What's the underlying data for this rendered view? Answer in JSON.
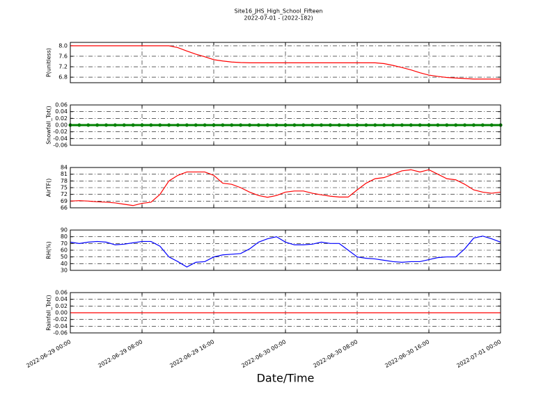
{
  "title": "Site16_JHS_High_School_Fifteen",
  "subtitle": "2022-07-01 - (2022-182)",
  "xlabel": "Date/Time",
  "xlim": [
    "2022-06-29 00:00",
    "2022-07-01 00:00"
  ],
  "xticks": [
    "2022-06-29 00:00",
    "2022-06-29 08:00",
    "2022-06-29 16:00",
    "2022-06-30 00:00",
    "2022-06-30 08:00",
    "2022-06-30 16:00",
    "2022-07-01 00:00"
  ],
  "chart_data": [
    {
      "type": "line",
      "ylabel": "P(unitless)",
      "color": "#ff0000",
      "ylim": [
        6.59,
        8.13
      ],
      "yticks": [
        6.8,
        7.2,
        7.6,
        {
          "value": 8.0,
          "label": "8.0"
        }
      ],
      "grid": true,
      "values": [
        8.0,
        8.0,
        8.0,
        8.0,
        8.0,
        8.0,
        8.0,
        8.0,
        8.0,
        8.0,
        8.0,
        8.0,
        7.93,
        7.8,
        7.68,
        7.58,
        7.47,
        7.42,
        7.38,
        7.36,
        7.35,
        7.35,
        7.35,
        7.35,
        7.35,
        7.35,
        7.35,
        7.35,
        7.35,
        7.35,
        7.35,
        7.35,
        7.35,
        7.35,
        7.35,
        7.32,
        7.25,
        7.17,
        7.08,
        6.97,
        6.88,
        6.83,
        6.79,
        6.77,
        6.75,
        6.73,
        6.73,
        6.73,
        6.73
      ]
    },
    {
      "type": "scatter",
      "ylabel": "Snowfall_Tot()",
      "color": "#008000",
      "ylim": [
        -0.06,
        0.06
      ],
      "yticks": [
        -0.06,
        -0.04,
        -0.02,
        {
          "value": 0,
          "label": "0.00"
        },
        0.02,
        0.04,
        0.06
      ],
      "grid": true,
      "values": [
        0,
        0,
        0,
        0,
        0,
        0,
        0,
        0,
        0,
        0,
        0,
        0,
        0,
        0,
        0,
        0,
        0,
        0,
        0,
        0,
        0,
        0,
        0,
        0,
        0,
        0,
        0,
        0,
        0,
        0,
        0,
        0,
        0,
        0,
        0,
        0,
        0,
        0,
        0,
        0,
        0,
        0,
        0,
        0,
        0,
        0,
        0,
        0,
        0
      ]
    },
    {
      "type": "line",
      "ylabel": "AirTF()",
      "color": "#ff0000",
      "ylim": [
        66,
        84
      ],
      "yticks": [
        66,
        69,
        72,
        75,
        78,
        81,
        84
      ],
      "grid": true,
      "values": [
        69,
        69.2,
        69,
        68.7,
        68.5,
        68.2,
        67.6,
        67,
        68,
        68.5,
        72,
        78,
        80.5,
        82,
        82,
        82,
        80.5,
        77,
        76.5,
        75,
        73,
        71.5,
        70.7,
        71.5,
        73,
        73.5,
        73.5,
        72.5,
        71.8,
        71.2,
        70.8,
        70.8,
        74,
        77,
        79,
        79.5,
        81,
        82.5,
        83,
        82,
        83,
        81,
        79,
        78.5,
        76.5,
        74,
        73,
        72.5,
        73
      ]
    },
    {
      "type": "line",
      "ylabel": "RH(%)",
      "color": "#0000ff",
      "ylim": [
        30,
        90
      ],
      "yticks": [
        30,
        40,
        50,
        60,
        70,
        80,
        90
      ],
      "grid": true,
      "values": [
        72,
        70,
        72,
        73,
        72,
        68,
        69,
        71,
        73,
        73,
        66,
        50,
        43,
        35,
        42,
        43,
        50,
        53,
        54,
        55,
        62,
        72,
        77,
        80,
        72,
        68,
        68,
        69,
        72,
        70,
        70,
        60,
        50,
        48,
        47,
        45,
        43,
        42,
        43,
        43,
        46,
        49,
        50,
        50,
        62,
        78,
        81,
        77,
        72
      ]
    },
    {
      "type": "line",
      "ylabel": "Rainfall_Tot()",
      "color": "#ff0000",
      "ylim": [
        -0.06,
        0.06
      ],
      "yticks": [
        -0.06,
        -0.04,
        -0.02,
        {
          "value": 0,
          "label": "0.00"
        },
        0.02,
        0.04,
        0.06
      ],
      "grid": true,
      "values": [
        0,
        0,
        0,
        0,
        0,
        0,
        0,
        0,
        0,
        0,
        0,
        0,
        0,
        0,
        0,
        0,
        0,
        0,
        0,
        0,
        0,
        0,
        0,
        0,
        0,
        0,
        0,
        0,
        0,
        0,
        0,
        0,
        0,
        0,
        0,
        0,
        0,
        0,
        0,
        0,
        0,
        0,
        0,
        0,
        0,
        0,
        0,
        0,
        0
      ]
    }
  ]
}
